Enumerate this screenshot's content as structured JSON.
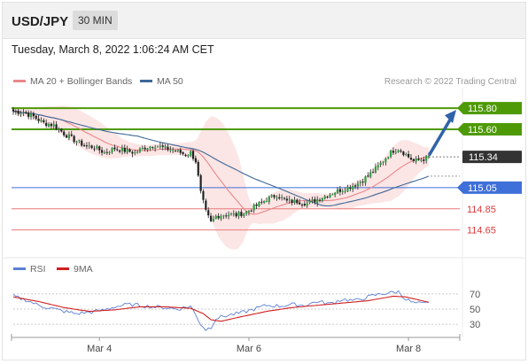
{
  "header": {
    "symbol": "USD/JPY",
    "timeframe": "30 MIN"
  },
  "timestamp": "Tuesday, March 8, 2022 1:06:24 AM CET",
  "legend": {
    "ma20": "MA 20 + Bollinger Bands",
    "ma50": "MA 50",
    "rsi": "RSI",
    "ma9": "9MA"
  },
  "credit": "Research © 2022 Trading Central",
  "colors": {
    "bull": "#2ea043",
    "bear": "#222222",
    "ma20": "#e8888a",
    "ma50": "#3d6898",
    "bollinger": "#fbdcdc",
    "resistance": "#4e9a06",
    "pivot": "#3f6fd8",
    "support": "#e87979",
    "rsi": "#5b7fd6",
    "rsi_ma": "#d11f1f",
    "arrow": "#2f63a8",
    "current": "#333333"
  },
  "chart_data": [
    {
      "type": "candlestick",
      "x_labels": [
        "Mar 4",
        "Mar 6",
        "Mar 8"
      ],
      "ylim": [
        114.48,
        115.96
      ],
      "price_levels": [
        {
          "label": "115.80",
          "value": 115.8,
          "kind": "resistance"
        },
        {
          "label": "115.60",
          "value": 115.6,
          "kind": "resistance"
        },
        {
          "label": "115.34",
          "value": 115.34,
          "kind": "current"
        },
        {
          "label": "115.05",
          "value": 115.05,
          "kind": "pivot"
        },
        {
          "label": "114.85",
          "value": 114.85,
          "kind": "support"
        },
        {
          "label": "114.65",
          "value": 114.65,
          "kind": "support"
        }
      ],
      "close_anchors": [
        [
          0,
          115.77
        ],
        [
          4,
          115.76
        ],
        [
          8,
          115.72
        ],
        [
          12,
          115.66
        ],
        [
          16,
          115.64
        ],
        [
          20,
          115.56
        ],
        [
          24,
          115.5
        ],
        [
          28,
          115.45
        ],
        [
          32,
          115.43
        ],
        [
          36,
          115.38
        ],
        [
          40,
          115.42
        ],
        [
          44,
          115.4
        ],
        [
          48,
          115.38
        ],
        [
          52,
          115.43
        ],
        [
          56,
          115.45
        ],
        [
          60,
          115.42
        ],
        [
          64,
          115.4
        ],
        [
          68,
          115.36
        ],
        [
          70,
          115.38
        ],
        [
          72,
          115.3
        ],
        [
          74,
          115.0
        ],
        [
          76,
          114.82
        ],
        [
          78,
          114.72
        ],
        [
          80,
          114.78
        ],
        [
          84,
          114.8
        ],
        [
          88,
          114.79
        ],
        [
          92,
          114.82
        ],
        [
          96,
          114.88
        ],
        [
          100,
          114.94
        ],
        [
          104,
          114.98
        ],
        [
          108,
          114.92
        ],
        [
          112,
          114.92
        ],
        [
          116,
          114.9
        ],
        [
          120,
          114.94
        ],
        [
          124,
          114.98
        ],
        [
          128,
          115.02
        ],
        [
          132,
          115.05
        ],
        [
          136,
          115.09
        ],
        [
          140,
          115.16
        ],
        [
          144,
          115.25
        ],
        [
          148,
          115.36
        ],
        [
          150,
          115.4
        ],
        [
          152,
          115.42
        ],
        [
          155,
          115.36
        ],
        [
          158,
          115.3
        ],
        [
          162,
          115.32
        ],
        [
          164,
          115.34
        ]
      ],
      "rsi": {
        "levels": [
          70,
          50,
          30
        ],
        "ylim": [
          15,
          85
        ],
        "rsi_anchors": [
          [
            0,
            67
          ],
          [
            5,
            62
          ],
          [
            10,
            55
          ],
          [
            15,
            51
          ],
          [
            20,
            47
          ],
          [
            25,
            44
          ],
          [
            30,
            46
          ],
          [
            35,
            48
          ],
          [
            40,
            53
          ],
          [
            45,
            56
          ],
          [
            50,
            55
          ],
          [
            55,
            53
          ],
          [
            60,
            52
          ],
          [
            65,
            50
          ],
          [
            70,
            54
          ],
          [
            72,
            42
          ],
          [
            74,
            30
          ],
          [
            76,
            23
          ],
          [
            78,
            26
          ],
          [
            80,
            38
          ],
          [
            85,
            42
          ],
          [
            90,
            45
          ],
          [
            95,
            50
          ],
          [
            100,
            55
          ],
          [
            105,
            54
          ],
          [
            110,
            56
          ],
          [
            115,
            55
          ],
          [
            120,
            60
          ],
          [
            125,
            57
          ],
          [
            130,
            63
          ],
          [
            135,
            61
          ],
          [
            140,
            66
          ],
          [
            145,
            70
          ],
          [
            150,
            72
          ],
          [
            152,
            73
          ],
          [
            155,
            63
          ],
          [
            158,
            58
          ],
          [
            162,
            57
          ],
          [
            164,
            58
          ]
        ],
        "ma_anchors": [
          [
            0,
            66
          ],
          [
            10,
            60
          ],
          [
            20,
            52
          ],
          [
            30,
            47
          ],
          [
            40,
            49
          ],
          [
            50,
            53
          ],
          [
            60,
            53
          ],
          [
            70,
            51
          ],
          [
            75,
            44
          ],
          [
            78,
            36
          ],
          [
            82,
            34
          ],
          [
            90,
            40
          ],
          [
            100,
            47
          ],
          [
            110,
            52
          ],
          [
            120,
            55
          ],
          [
            130,
            58
          ],
          [
            140,
            61
          ],
          [
            150,
            67
          ],
          [
            155,
            66
          ],
          [
            160,
            62
          ],
          [
            164,
            59
          ]
        ]
      }
    }
  ]
}
